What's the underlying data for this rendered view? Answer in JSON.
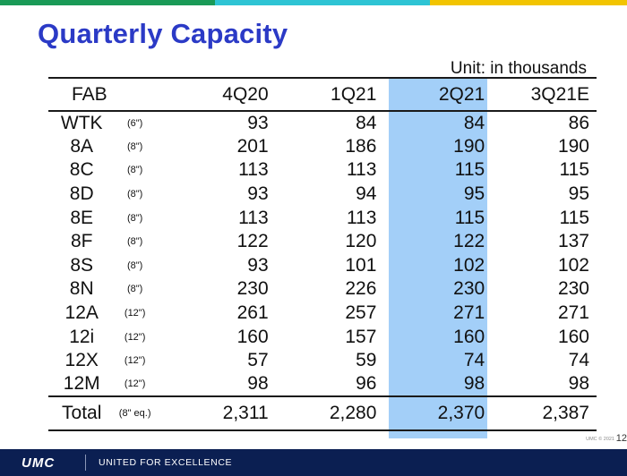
{
  "colors": {
    "title": "#2b3ac6",
    "highlight_column": "#a3cff8",
    "footer_bar": "#0b1f52",
    "top_bar_segments": [
      "#1a9a57",
      "#2ec4d4",
      "#f2c400"
    ]
  },
  "title": "Quarterly Capacity",
  "unit_label": "Unit: in thousands",
  "table": {
    "highlighted_column": "2Q21",
    "headers": [
      "FAB",
      "",
      "4Q20",
      "1Q21",
      "2Q21",
      "3Q21E"
    ],
    "rows": [
      {
        "fab": "WTK",
        "size": "(6\")",
        "q4_20": "93",
        "q1_21": "84",
        "q2_21": "84",
        "q3_21e": "86"
      },
      {
        "fab": "8A",
        "size": "(8\")",
        "q4_20": "201",
        "q1_21": "186",
        "q2_21": "190",
        "q3_21e": "190"
      },
      {
        "fab": "8C",
        "size": "(8\")",
        "q4_20": "113",
        "q1_21": "113",
        "q2_21": "115",
        "q3_21e": "115"
      },
      {
        "fab": "8D",
        "size": "(8\")",
        "q4_20": "93",
        "q1_21": "94",
        "q2_21": "95",
        "q3_21e": "95"
      },
      {
        "fab": "8E",
        "size": "(8\")",
        "q4_20": "113",
        "q1_21": "113",
        "q2_21": "115",
        "q3_21e": "115"
      },
      {
        "fab": "8F",
        "size": "(8\")",
        "q4_20": "122",
        "q1_21": "120",
        "q2_21": "122",
        "q3_21e": "137"
      },
      {
        "fab": "8S",
        "size": "(8\")",
        "q4_20": "93",
        "q1_21": "101",
        "q2_21": "102",
        "q3_21e": "102"
      },
      {
        "fab": "8N",
        "size": "(8\")",
        "q4_20": "230",
        "q1_21": "226",
        "q2_21": "230",
        "q3_21e": "230"
      },
      {
        "fab": "12A",
        "size": "(12\")",
        "q4_20": "261",
        "q1_21": "257",
        "q2_21": "271",
        "q3_21e": "271"
      },
      {
        "fab": "12i",
        "size": "(12\")",
        "q4_20": "160",
        "q1_21": "157",
        "q2_21": "160",
        "q3_21e": "160"
      },
      {
        "fab": "12X",
        "size": "(12\")",
        "q4_20": "57",
        "q1_21": "59",
        "q2_21": "74",
        "q3_21e": "74"
      },
      {
        "fab": "12M",
        "size": "(12\")",
        "q4_20": "98",
        "q1_21": "96",
        "q2_21": "98",
        "q3_21e": "98"
      }
    ],
    "total": {
      "fab": "Total",
      "size": "(8\" eq.)",
      "q4_20": "2,311",
      "q1_21": "2,280",
      "q2_21": "2,370",
      "q3_21e": "2,387"
    }
  },
  "footer": {
    "logo": "UMC",
    "tagline": "UNITED FOR EXCELLENCE",
    "copyright": "UMC © 2021",
    "page_number": "12"
  }
}
